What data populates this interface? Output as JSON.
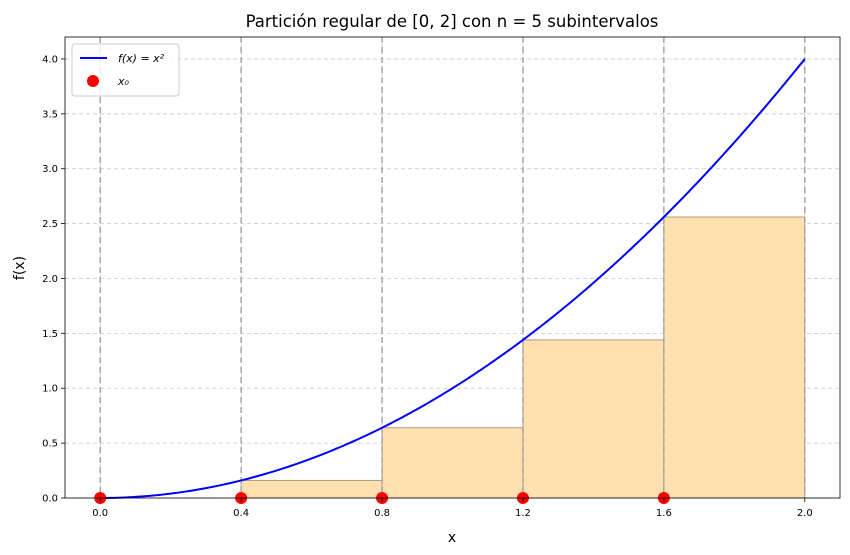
{
  "chart_data": {
    "type": "line",
    "title": "Partición regular de [0, 2] con n = 5 subintervalos",
    "xlabel": "x",
    "ylabel": "f(x)",
    "xlim": [
      -0.1,
      2.1
    ],
    "ylim": [
      0,
      4.2
    ],
    "xticks": [
      0.0,
      0.4,
      0.8,
      1.2,
      1.6,
      2.0
    ],
    "xtick_labels": [
      "0.0",
      "0.4",
      "0.8",
      "1.2",
      "1.6",
      "2.0"
    ],
    "yticks": [
      0.0,
      0.5,
      1.0,
      1.5,
      2.0,
      2.5,
      3.0,
      3.5,
      4.0
    ],
    "ytick_labels": [
      "0.0",
      "0.5",
      "1.0",
      "1.5",
      "2.0",
      "2.5",
      "3.0",
      "3.5",
      "4.0"
    ],
    "grid": true,
    "legend_position": "upper-left",
    "curve": {
      "name": "f(x) = x²",
      "function": "x^2",
      "x_range": [
        0,
        2
      ],
      "color": "#0000ff"
    },
    "partition_points": {
      "name": "x₀",
      "x": [
        0.0,
        0.4,
        0.8,
        1.2,
        1.6
      ],
      "y": [
        0,
        0,
        0,
        0,
        0
      ],
      "color": "#ff0000"
    },
    "partition_lines_x": [
      0.0,
      0.4,
      0.8,
      1.2,
      1.6,
      2.0
    ],
    "rectangles": [
      {
        "x_start": 0.0,
        "x_end": 0.4,
        "height": 0.0
      },
      {
        "x_start": 0.4,
        "x_end": 0.8,
        "height": 0.16
      },
      {
        "x_start": 0.8,
        "x_end": 1.2,
        "height": 0.64
      },
      {
        "x_start": 1.2,
        "x_end": 1.6,
        "height": 1.44
      },
      {
        "x_start": 1.6,
        "x_end": 2.0,
        "height": 2.56
      }
    ],
    "rect_fill": "#ffe0b0",
    "rect_edge": "#b09a80"
  }
}
